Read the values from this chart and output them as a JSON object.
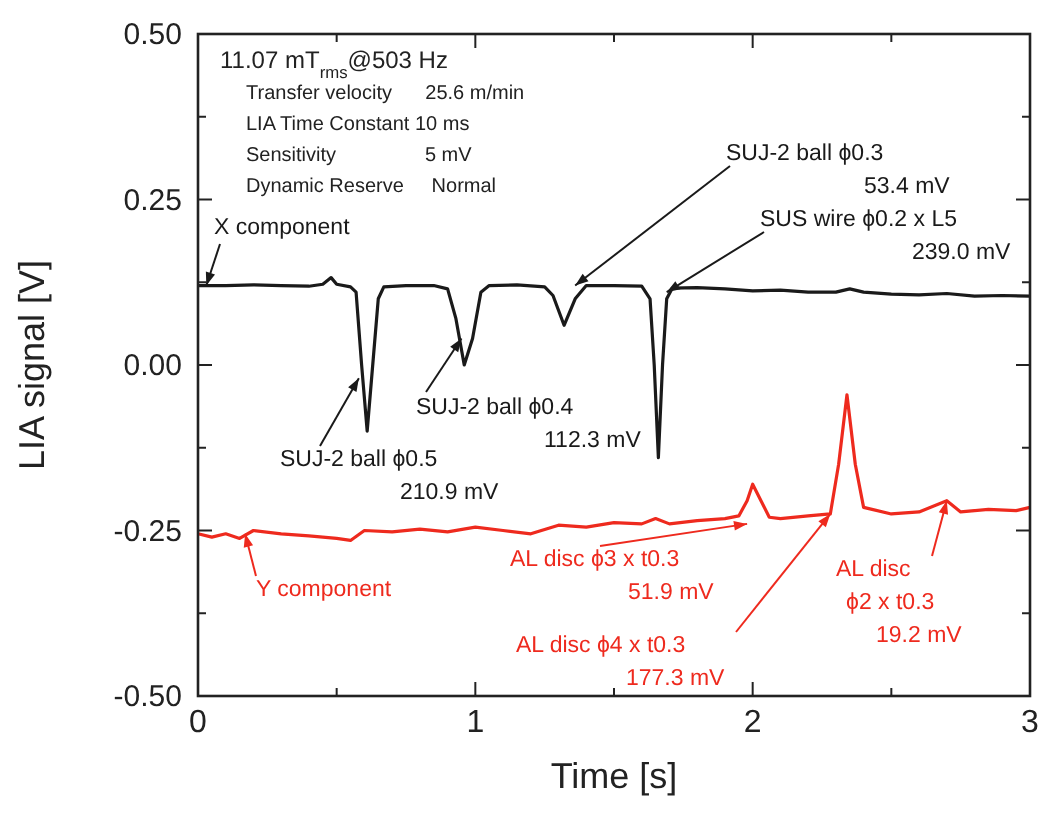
{
  "chart_data": {
    "type": "line",
    "xlabel": "Time [s]",
    "ylabel": "LIA signal [V]",
    "xlim": [
      0,
      3
    ],
    "ylim": [
      -0.5,
      0.5
    ],
    "xticks": [
      0,
      {
        "value": 0.5,
        "label": null
      },
      1,
      {
        "value": 1.5,
        "label": null
      },
      2,
      {
        "value": 2.5,
        "label": null
      },
      3
    ],
    "yticks": [
      {
        "value": -0.5,
        "label": "-0.50"
      },
      {
        "value": -0.375,
        "label": null
      },
      {
        "value": -0.25,
        "label": "-0.25"
      },
      {
        "value": -0.125,
        "label": null
      },
      {
        "value": 0,
        "label": "0.00"
      },
      {
        "value": 0.125,
        "label": null
      },
      {
        "value": 0.25,
        "label": "0.25"
      },
      {
        "value": 0.375,
        "label": null
      },
      {
        "value": 0.5,
        "label": "0.50"
      }
    ],
    "grid": false,
    "marker": "none",
    "line_style": "solid",
    "series": [
      {
        "color": "#1a1a1a",
        "x": [
          0,
          0.1,
          0.2,
          0.3,
          0.4,
          0.45,
          0.48,
          0.5,
          0.55,
          0.57,
          0.59,
          0.61,
          0.63,
          0.65,
          0.67,
          0.75,
          0.85,
          0.9,
          0.93,
          0.96,
          0.99,
          1.02,
          1.05,
          1.15,
          1.25,
          1.28,
          1.32,
          1.36,
          1.4,
          1.5,
          1.6,
          1.63,
          1.645,
          1.66,
          1.675,
          1.69,
          1.71,
          1.8,
          1.9,
          2.0,
          2.1,
          2.2,
          2.3,
          2.35,
          2.4,
          2.5,
          2.6,
          2.7,
          2.8,
          2.9,
          3.0
        ],
        "values": [
          0.12,
          0.12,
          0.121,
          0.12,
          0.119,
          0.122,
          0.132,
          0.122,
          0.118,
          0.11,
          0.0,
          -0.1,
          0.0,
          0.1,
          0.118,
          0.12,
          0.12,
          0.115,
          0.07,
          0.0,
          0.04,
          0.11,
          0.12,
          0.121,
          0.118,
          0.105,
          0.06,
          0.1,
          0.12,
          0.12,
          0.119,
          0.1,
          0.0,
          -0.14,
          0.0,
          0.1,
          0.116,
          0.117,
          0.115,
          0.112,
          0.113,
          0.11,
          0.11,
          0.115,
          0.11,
          0.107,
          0.106,
          0.108,
          0.104,
          0.105,
          0.104
        ]
      },
      {
        "color": "#ee2a1e",
        "x": [
          0,
          0.05,
          0.1,
          0.15,
          0.2,
          0.3,
          0.4,
          0.5,
          0.55,
          0.6,
          0.7,
          0.8,
          0.9,
          1.0,
          1.1,
          1.2,
          1.3,
          1.4,
          1.5,
          1.6,
          1.65,
          1.7,
          1.8,
          1.9,
          1.95,
          1.98,
          2.0,
          2.03,
          2.06,
          2.1,
          2.2,
          2.28,
          2.31,
          2.34,
          2.37,
          2.4,
          2.5,
          2.6,
          2.7,
          2.75,
          2.85,
          2.95,
          3.0
        ],
        "values": [
          -0.255,
          -0.26,
          -0.255,
          -0.262,
          -0.25,
          -0.255,
          -0.258,
          -0.262,
          -0.265,
          -0.25,
          -0.252,
          -0.248,
          -0.252,
          -0.245,
          -0.25,
          -0.255,
          -0.242,
          -0.245,
          -0.238,
          -0.24,
          -0.232,
          -0.24,
          -0.235,
          -0.232,
          -0.228,
          -0.205,
          -0.18,
          -0.205,
          -0.23,
          -0.232,
          -0.228,
          -0.225,
          -0.15,
          -0.045,
          -0.15,
          -0.215,
          -0.225,
          -0.222,
          -0.205,
          -0.222,
          -0.218,
          -0.22,
          -0.215
        ]
      }
    ],
    "annotations": [
      "11.07 mT$_{rms}$@503 Hz",
      "Transfer velocity      25.6 m/min",
      "LIA Time Constant 10 ms",
      "Sensitivity                5 mV",
      "Dynamic Reserve     Normal",
      {
        "text": "X component",
        "x": 0.03,
        "y": 0.12
      },
      {
        "text": "SUJ-2 ball ϕ0.5\n210.9 mV",
        "x": 0.58,
        "y": -0.02
      },
      {
        "text": "SUJ-2 ball ϕ0.4\n112.3 mV",
        "x": 0.95,
        "y": 0.04
      },
      {
        "text": "SUJ-2 ball ϕ0.3\n53.4 mV",
        "x": 1.36,
        "y": 0.12
      },
      {
        "text": "SUS wire ϕ0.2 x L5\n239.0 mV",
        "x": 1.69,
        "y": 0.11
      },
      {
        "text": "Y component",
        "x": 0.17,
        "y": -0.255
      },
      {
        "text": "AL disc ϕ3 x t0.3\n51.9 mV",
        "x": 1.98,
        "y": -0.24
      },
      {
        "text": "AL disc ϕ4 x t0.3\n177.3 mV",
        "x": 2.28,
        "y": -0.225
      },
      {
        "text": "AL disc\nϕ2 x t0.3\n19.2 mV",
        "x": 2.7,
        "y": -0.205
      }
    ]
  }
}
